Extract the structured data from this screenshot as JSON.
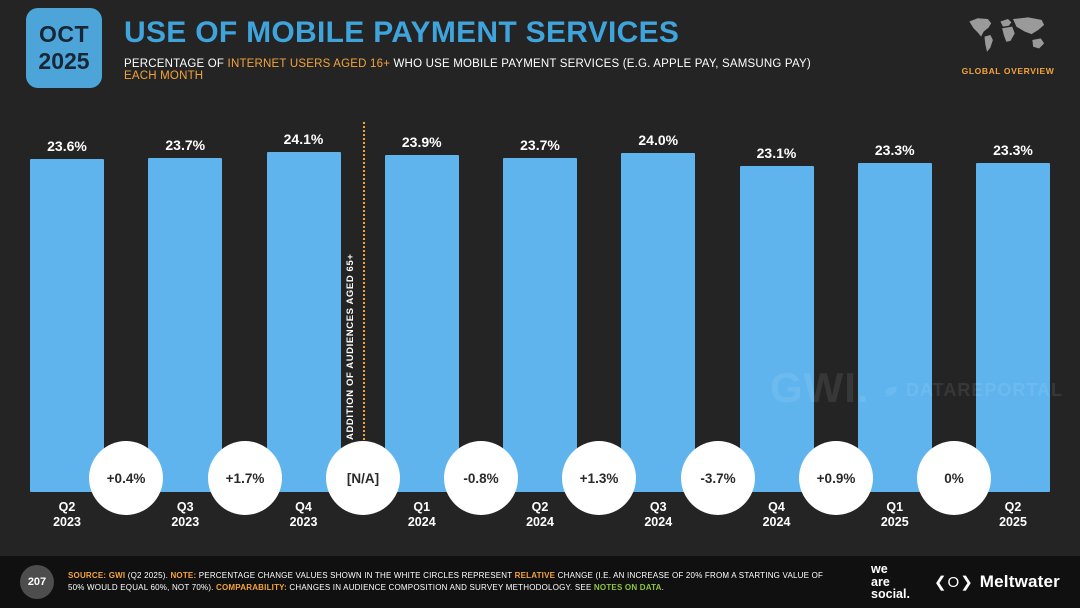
{
  "header": {
    "date_badge": {
      "month": "OCT",
      "year": "2025"
    },
    "title": "USE OF MOBILE PAYMENT SERVICES",
    "subtitle_segments": [
      {
        "text": "PERCENTAGE OF ",
        "style": "white"
      },
      {
        "text": "INTERNET USERS AGED 16+",
        "style": "orange"
      },
      {
        "text": " WHO USE MOBILE PAYMENT SERVICES (E.G. APPLE PAY, SAMSUNG PAY) ",
        "style": "white"
      },
      {
        "text": "EACH MONTH",
        "style": "orange"
      }
    ],
    "overview_label": "GLOBAL OVERVIEW"
  },
  "chart_data": {
    "type": "bar",
    "categories": [
      "Q2 2023",
      "Q3 2023",
      "Q4 2023",
      "Q1 2024",
      "Q2 2024",
      "Q3 2024",
      "Q4 2024",
      "Q1 2025",
      "Q2 2025"
    ],
    "values": [
      23.6,
      23.7,
      24.1,
      23.9,
      23.7,
      24.0,
      23.1,
      23.3,
      23.3
    ],
    "value_labels": [
      "23.6%",
      "23.7%",
      "24.1%",
      "23.9%",
      "23.7%",
      "24.0%",
      "23.1%",
      "23.3%",
      "23.3%"
    ],
    "changes": [
      "+0.4%",
      "+1.7%",
      "[N/A]",
      "-0.8%",
      "+1.3%",
      "-3.7%",
      "+0.9%",
      "0%"
    ],
    "annotation": "ADDITION OF AUDIENCES AGED 65+",
    "annotation_boundary_index": 2,
    "title": "USE OF MOBILE PAYMENT SERVICES",
    "xlabel": "",
    "ylabel": "",
    "ylim": [
      0,
      24.1
    ],
    "grid": false,
    "legend": "none",
    "bar_color": "#5fb4ee"
  },
  "watermarks": {
    "gwi": "GWI.",
    "datareportal": "DATAREPORTAL"
  },
  "footer": {
    "page_number": "207",
    "source_segments": [
      {
        "text": "SOURCE:",
        "style": "orange",
        "bold": true
      },
      {
        "text": " ",
        "style": "white"
      },
      {
        "text": "GWI",
        "style": "orange",
        "bold": true
      },
      {
        "text": " (Q2 2025). ",
        "style": "white"
      },
      {
        "text": "NOTE:",
        "style": "orange",
        "bold": true
      },
      {
        "text": " PERCENTAGE CHANGE VALUES SHOWN IN THE WHITE CIRCLES REPRESENT ",
        "style": "white"
      },
      {
        "text": "RELATIVE",
        "style": "orange",
        "bold": true
      },
      {
        "text": " CHANGE (I.E. AN INCREASE OF 20% FROM A STARTING VALUE OF 50% WOULD EQUAL 60%, NOT 70%). ",
        "style": "white"
      },
      {
        "text": "COMPARABILITY:",
        "style": "orange",
        "bold": true
      },
      {
        "text": " CHANGES IN AUDIENCE COMPOSITION AND SURVEY METHODOLOGY. SEE ",
        "style": "white"
      },
      {
        "text": "NOTES ON DATA",
        "style": "green",
        "bold": true
      },
      {
        "text": ".",
        "style": "white"
      }
    ],
    "we_are_social_lines": [
      "we",
      "are",
      "social."
    ],
    "meltwater_label": "Meltwater"
  },
  "icons": {
    "meltwater_icon": "❮O❯"
  },
  "colors": {
    "background": "#242424",
    "footer_background": "#101010",
    "accent_blue": "#3fa3dc",
    "badge_blue": "#4da4d9",
    "bar_blue": "#5fb4ee",
    "accent_orange": "#f3a33c",
    "accent_green": "#8dc63f",
    "circle_white": "#ffffff"
  }
}
